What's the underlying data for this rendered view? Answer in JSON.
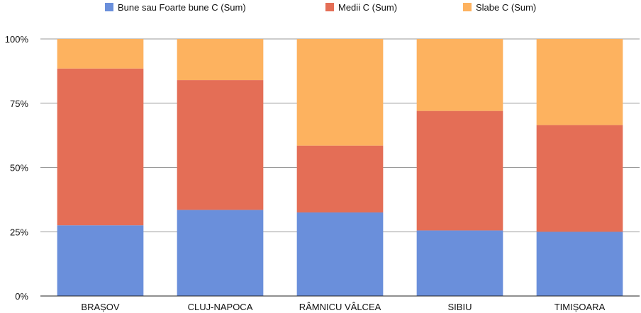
{
  "chart_data": {
    "type": "bar",
    "stacked": true,
    "normalized_percent": true,
    "categories": [
      "BRAȘOV",
      "CLUJ-NAPOCA",
      "RÂMNICU VÂLCEA",
      "SIBIU",
      "TIMIȘOARA"
    ],
    "series": [
      {
        "name": "Bune sau Foarte bune C (Sum)",
        "color": "#6a8fdb",
        "values": [
          27.5,
          33.5,
          32.5,
          25.5,
          25
        ]
      },
      {
        "name": "Medii C (Sum)",
        "color": "#e46e56",
        "values": [
          61,
          50.5,
          26,
          46.5,
          41.5
        ]
      },
      {
        "name": "Slabe C (Sum)",
        "color": "#fdb25f",
        "values": [
          11.5,
          16,
          41.5,
          28,
          33.5
        ]
      }
    ],
    "yticks": [
      "0%",
      "25%",
      "50%",
      "75%",
      "100%"
    ],
    "ylim": [
      0,
      100
    ],
    "grid": true,
    "legend_position": "top"
  }
}
